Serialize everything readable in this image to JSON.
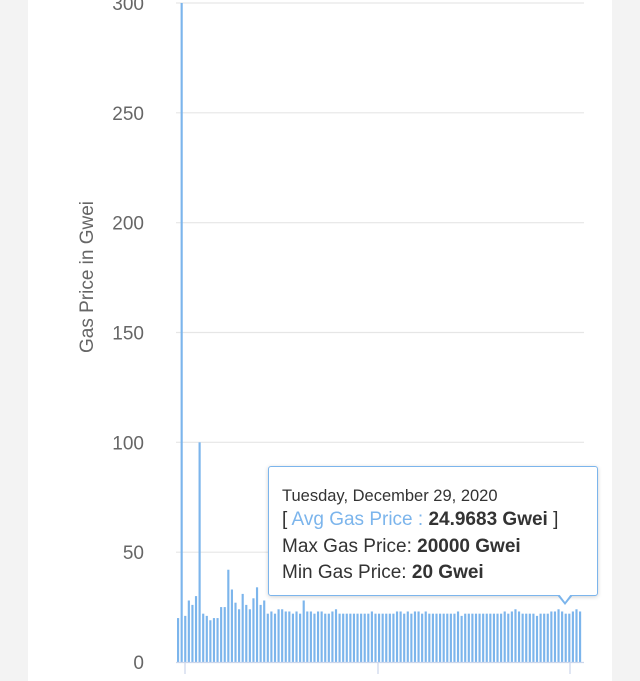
{
  "chart_data": {
    "type": "bar",
    "ylabel": "Gas Price in Gwei",
    "y_ticks": [
      "0",
      "50",
      "100",
      "150",
      "200",
      "250",
      "300"
    ],
    "ylim": [
      0,
      300
    ],
    "grid": true,
    "color": "#7cb5ec",
    "values": [
      20,
      300,
      21,
      28,
      26,
      30,
      100,
      22,
      21,
      19,
      20,
      20,
      25,
      25,
      42,
      33,
      27,
      24,
      31,
      26,
      24,
      29,
      34,
      26,
      28,
      22,
      23,
      22,
      24,
      24,
      23,
      23,
      22,
      23,
      22,
      28,
      23,
      23,
      22,
      23,
      23,
      22,
      22,
      23,
      24,
      22,
      22,
      22,
      22,
      22,
      22,
      22,
      22,
      22,
      23,
      22,
      22,
      22,
      22,
      22,
      22,
      23,
      23,
      22,
      23,
      22,
      23,
      23,
      22,
      23,
      22,
      22,
      22,
      22,
      22,
      22,
      22,
      22,
      23,
      21,
      22,
      22,
      22,
      22,
      22,
      22,
      22,
      22,
      22,
      22,
      22,
      23,
      22,
      23,
      24,
      23,
      22,
      22,
      22,
      22,
      21,
      22,
      22,
      22,
      23,
      23,
      24,
      23,
      22,
      22,
      23,
      24,
      23
    ]
  },
  "tooltip": {
    "date": "Tuesday, December 29, 2020",
    "avg_label": "Avg Gas Price :",
    "avg_value": "24.9683 Gwei",
    "max_label": "Max Gas Price:",
    "max_value": "20000 Gwei",
    "min_label": "Min Gas Price:",
    "min_value": "20 Gwei"
  }
}
